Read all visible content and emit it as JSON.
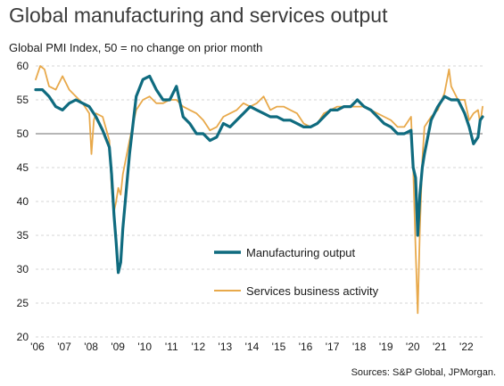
{
  "chart_data": {
    "type": "line",
    "title": "Global manufacturing and services output",
    "subtitle": "Global PMI Index, 50 = no change on prior month",
    "source": "Sources: S&P Global, JPMorgan.",
    "ylim": [
      20,
      60
    ],
    "yticks": [
      20,
      25,
      30,
      35,
      40,
      45,
      50,
      55,
      60
    ],
    "xlim": [
      2006.0,
      2022.67
    ],
    "xtick_labels": [
      "'06",
      "'07",
      "'08",
      "'09",
      "'10",
      "'11",
      "'12",
      "'13",
      "'14",
      "'15",
      "'16",
      "'17",
      "'18",
      "'19",
      "'20",
      "'21",
      "'22"
    ],
    "reference_line": 50,
    "grid": "horizontal dashed",
    "legend_position": "center-right",
    "series": [
      {
        "name": "Manufacturing output",
        "color": "#0f6b7f",
        "x": [
          2006.0,
          2006.25,
          2006.5,
          2006.75,
          2007.0,
          2007.25,
          2007.5,
          2007.75,
          2008.0,
          2008.25,
          2008.5,
          2008.75,
          2008.83,
          2008.92,
          2009.0,
          2009.08,
          2009.17,
          2009.25,
          2009.5,
          2009.75,
          2010.0,
          2010.25,
          2010.5,
          2010.75,
          2011.0,
          2011.25,
          2011.5,
          2011.75,
          2012.0,
          2012.25,
          2012.5,
          2012.75,
          2013.0,
          2013.25,
          2013.5,
          2013.75,
          2014.0,
          2014.25,
          2014.5,
          2014.75,
          2015.0,
          2015.25,
          2015.5,
          2015.75,
          2016.0,
          2016.25,
          2016.5,
          2016.75,
          2017.0,
          2017.25,
          2017.5,
          2017.75,
          2018.0,
          2018.25,
          2018.5,
          2018.75,
          2019.0,
          2019.25,
          2019.5,
          2019.75,
          2020.0,
          2020.08,
          2020.17,
          2020.25,
          2020.33,
          2020.42,
          2020.5,
          2020.75,
          2021.0,
          2021.25,
          2021.5,
          2021.75,
          2022.0,
          2022.17,
          2022.33,
          2022.5,
          2022.58,
          2022.67
        ],
        "values": [
          56.5,
          56.5,
          55.5,
          54,
          53.5,
          54.5,
          55,
          54.5,
          54,
          52.5,
          50.5,
          48,
          44,
          38,
          34,
          29.5,
          31,
          36,
          47,
          55.5,
          58,
          58.5,
          56.5,
          55,
          55,
          57,
          52.5,
          51.5,
          50,
          50,
          49,
          49.5,
          51.5,
          51,
          52,
          53,
          54,
          53.5,
          53,
          52.5,
          52.5,
          52,
          52,
          51.5,
          51,
          51,
          51.5,
          52.5,
          53.5,
          53.5,
          54,
          54,
          55,
          54,
          53.5,
          52.5,
          51.5,
          51,
          50,
          50,
          50.5,
          45,
          43.5,
          35,
          41,
          45,
          47,
          52,
          54,
          55.5,
          55,
          55,
          53,
          51,
          48.5,
          49.5,
          52,
          52.5
        ]
      },
      {
        "name": "Services business activity",
        "color": "#e8a94b",
        "x": [
          2006.0,
          2006.17,
          2006.33,
          2006.5,
          2006.75,
          2007.0,
          2007.25,
          2007.5,
          2007.75,
          2008.0,
          2008.08,
          2008.17,
          2008.25,
          2008.5,
          2008.75,
          2008.83,
          2008.92,
          2009.0,
          2009.08,
          2009.17,
          2009.25,
          2009.5,
          2009.75,
          2010.0,
          2010.25,
          2010.5,
          2010.75,
          2011.0,
          2011.25,
          2011.5,
          2011.75,
          2012.0,
          2012.25,
          2012.5,
          2012.75,
          2013.0,
          2013.25,
          2013.5,
          2013.75,
          2014.0,
          2014.25,
          2014.5,
          2014.75,
          2015.0,
          2015.25,
          2015.5,
          2015.75,
          2016.0,
          2016.25,
          2016.5,
          2016.75,
          2017.0,
          2017.25,
          2017.5,
          2017.75,
          2018.0,
          2018.25,
          2018.5,
          2018.75,
          2019.0,
          2019.25,
          2019.5,
          2019.75,
          2020.0,
          2020.08,
          2020.17,
          2020.25,
          2020.33,
          2020.42,
          2020.5,
          2020.75,
          2021.0,
          2021.25,
          2021.42,
          2021.5,
          2021.75,
          2022.0,
          2022.17,
          2022.33,
          2022.5,
          2022.58,
          2022.67
        ],
        "values": [
          58,
          60,
          59.5,
          57,
          56.5,
          58.5,
          56.5,
          55.5,
          54.5,
          53,
          47,
          52,
          53,
          52.5,
          49,
          42,
          38.5,
          40,
          42,
          41,
          44,
          49,
          53.5,
          55,
          55.5,
          54.5,
          54.5,
          55,
          55,
          54,
          53.5,
          53,
          52,
          50.5,
          51,
          52.5,
          53,
          53.5,
          54.5,
          54,
          54.5,
          55.5,
          53.5,
          54,
          54,
          53.5,
          53,
          51.5,
          51,
          51.5,
          53,
          53.5,
          54,
          54,
          54,
          54,
          54,
          53.5,
          53,
          52.5,
          52,
          51,
          51,
          52.5,
          45,
          33,
          23.5,
          36,
          46,
          51,
          52.5,
          53.5,
          56,
          59.5,
          57,
          55,
          55,
          52,
          53,
          53.5,
          51.5,
          54
        ]
      }
    ]
  }
}
